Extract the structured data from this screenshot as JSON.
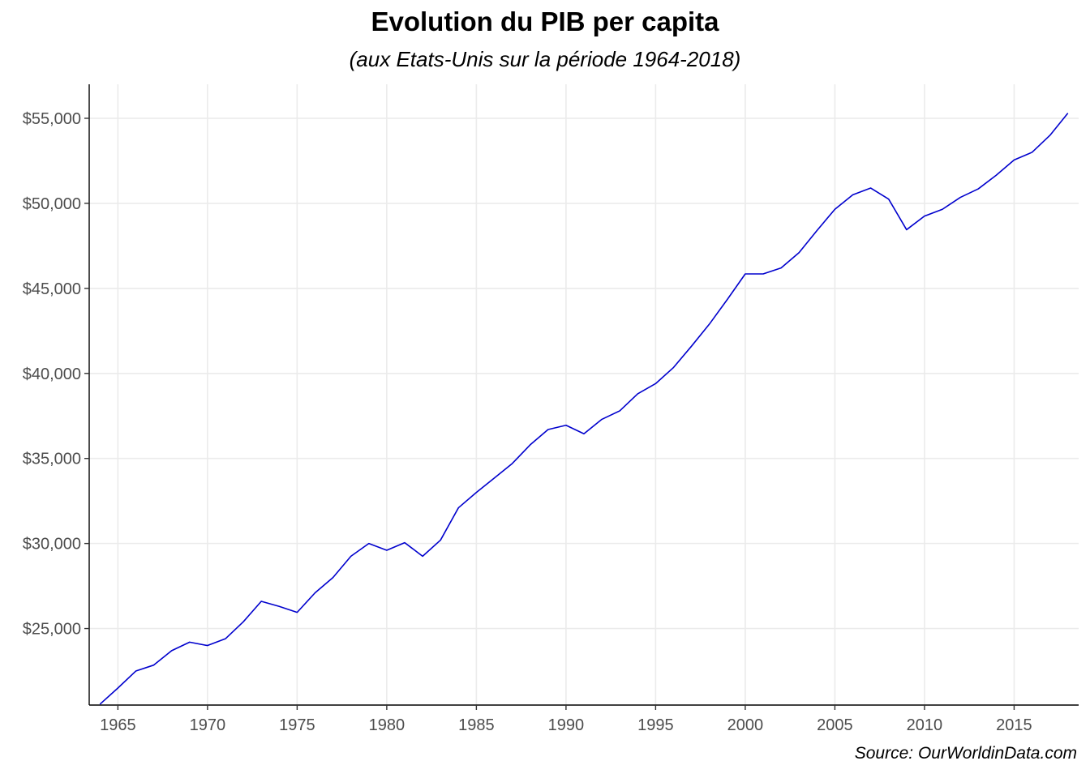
{
  "chart_data": {
    "type": "line",
    "title": "Evolution du PIB per capita",
    "subtitle": "(aux Etats-Unis sur la période 1964-2018)",
    "caption": "Source: OurWorldinData.com",
    "xlabel": "",
    "ylabel": "",
    "xlim": [
      1963.4,
      2018.6
    ],
    "ylim": [
      20500,
      57000
    ],
    "x_ticks": [
      1965,
      1970,
      1975,
      1980,
      1985,
      1990,
      1995,
      2000,
      2005,
      2010,
      2015
    ],
    "x_tick_labels": [
      "1965",
      "1970",
      "1975",
      "1980",
      "1985",
      "1990",
      "1995",
      "2000",
      "2005",
      "2010",
      "2015"
    ],
    "y_ticks": [
      25000,
      30000,
      35000,
      40000,
      45000,
      50000,
      55000
    ],
    "y_tick_labels": [
      "$25,000",
      "$30,000",
      "$35,000",
      "$40,000",
      "$45,000",
      "$50,000",
      "$55,000"
    ],
    "grid": true,
    "line_color": "#0000cd",
    "series": [
      {
        "x": [
          1964,
          1965,
          1966,
          1967,
          1968,
          1969,
          1970,
          1971,
          1972,
          1973,
          1974,
          1975,
          1976,
          1977,
          1978,
          1979,
          1980,
          1981,
          1982,
          1983,
          1984,
          1985,
          1986,
          1987,
          1988,
          1989,
          1990,
          1991,
          1992,
          1993,
          1994,
          1995,
          1996,
          1997,
          1998,
          1999,
          2000,
          2001,
          2002,
          2003,
          2004,
          2005,
          2006,
          2007,
          2008,
          2009,
          2010,
          2011,
          2012,
          2013,
          2014,
          2015,
          2016,
          2017,
          2018
        ],
        "values": [
          20550,
          21500,
          22500,
          22850,
          23700,
          24200,
          24000,
          24400,
          25400,
          26600,
          26300,
          25950,
          27100,
          28000,
          29250,
          30000,
          29600,
          30050,
          29250,
          30200,
          32100,
          33000,
          33850,
          34700,
          35800,
          36700,
          36950,
          36450,
          37300,
          37800,
          38800,
          39400,
          40350,
          41600,
          42900,
          44350,
          45850,
          45850,
          46200,
          47100,
          48400,
          49650,
          50500,
          50900,
          50250,
          48450,
          49250,
          49650,
          50350,
          50850,
          51650,
          52550,
          53000,
          54000,
          55300
        ]
      }
    ]
  }
}
